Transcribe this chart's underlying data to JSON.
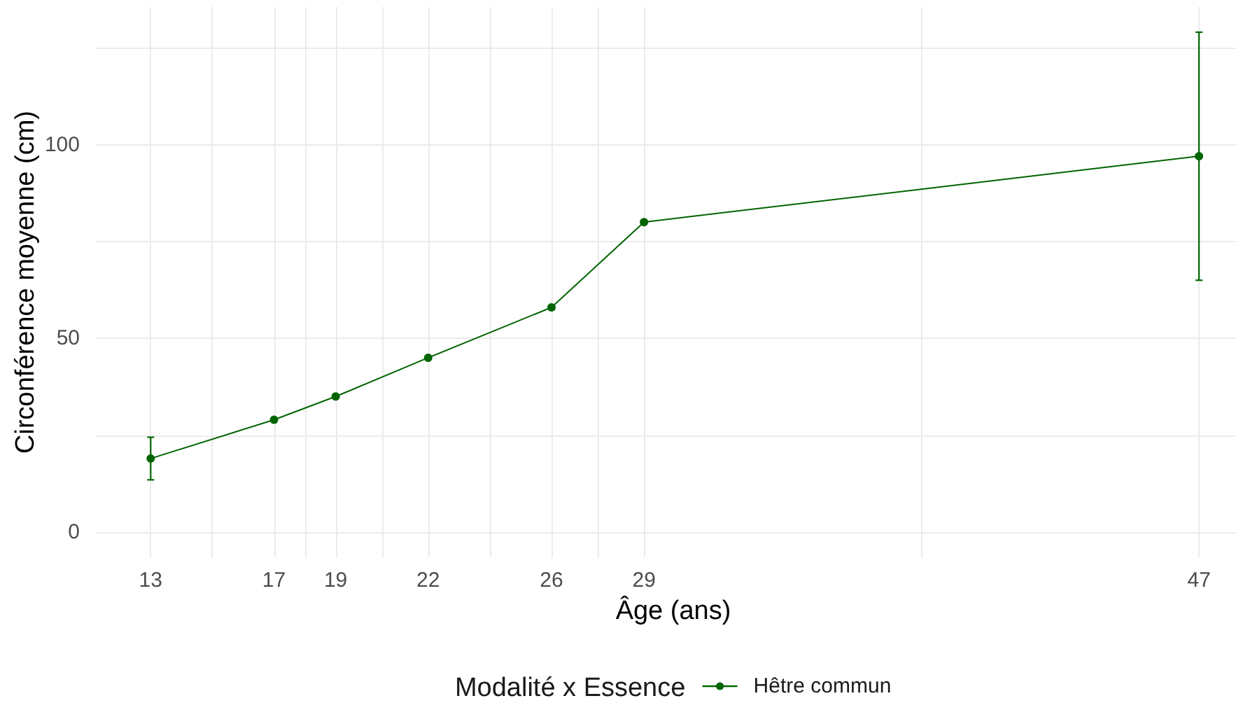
{
  "chart_data": {
    "type": "line",
    "xlabel": "Âge (ans)",
    "ylabel": "Circonférence moyenne (cm)",
    "legend_title": "Modalité x Essence",
    "x": [
      13,
      17,
      19,
      22,
      26,
      29,
      47
    ],
    "series": [
      {
        "name": "Hêtre commun",
        "color": "#006400",
        "values": [
          19,
          29,
          35,
          45,
          58,
          80,
          97
        ],
        "errors": [
          5.5,
          null,
          null,
          null,
          null,
          null,
          32
        ]
      }
    ],
    "xlim": [
      11.2,
      48.2
    ],
    "ylim": [
      -6.5,
      135.5
    ],
    "xticks": [
      13,
      {
        "value": 15,
        "label": null
      },
      17,
      {
        "value": 18,
        "label": null
      },
      19,
      {
        "value": 20.5,
        "label": null
      },
      22,
      {
        "value": 24,
        "label": null
      },
      26,
      {
        "value": 27.5,
        "label": null
      },
      29,
      {
        "value": 38,
        "label": null
      },
      47
    ],
    "yticks": [
      0,
      {
        "value": 25,
        "label": null
      },
      50,
      {
        "value": 75,
        "label": null
      },
      100,
      {
        "value": 125,
        "label": null
      }
    ],
    "grid": true,
    "legend": "bottom",
    "marker": "circle",
    "line_style": "solid"
  }
}
